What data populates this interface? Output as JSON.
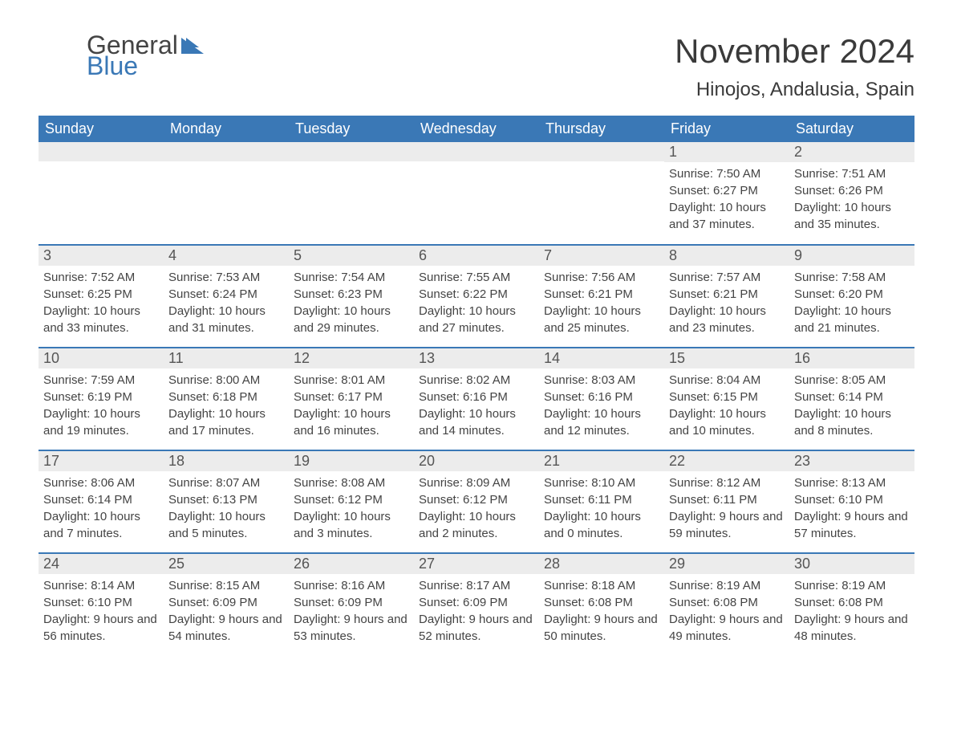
{
  "header": {
    "logo_general": "General",
    "logo_blue": "Blue",
    "month_title": "November 2024",
    "location": "Hinojos, Andalusia, Spain"
  },
  "colors": {
    "brand_blue": "#3a78b6",
    "header_text": "#ffffff",
    "daynum_bg": "#ececec",
    "body_text": "#3a3a3a",
    "background": "#ffffff"
  },
  "layout": {
    "type": "calendar-table",
    "columns": 7,
    "rows": 5,
    "start_day_index": 5
  },
  "day_headers": [
    "Sunday",
    "Monday",
    "Tuesday",
    "Wednesday",
    "Thursday",
    "Friday",
    "Saturday"
  ],
  "days": [
    {
      "n": 1,
      "sunrise": "7:50 AM",
      "sunset": "6:27 PM",
      "daylight": "10 hours and 37 minutes."
    },
    {
      "n": 2,
      "sunrise": "7:51 AM",
      "sunset": "6:26 PM",
      "daylight": "10 hours and 35 minutes."
    },
    {
      "n": 3,
      "sunrise": "7:52 AM",
      "sunset": "6:25 PM",
      "daylight": "10 hours and 33 minutes."
    },
    {
      "n": 4,
      "sunrise": "7:53 AM",
      "sunset": "6:24 PM",
      "daylight": "10 hours and 31 minutes."
    },
    {
      "n": 5,
      "sunrise": "7:54 AM",
      "sunset": "6:23 PM",
      "daylight": "10 hours and 29 minutes."
    },
    {
      "n": 6,
      "sunrise": "7:55 AM",
      "sunset": "6:22 PM",
      "daylight": "10 hours and 27 minutes."
    },
    {
      "n": 7,
      "sunrise": "7:56 AM",
      "sunset": "6:21 PM",
      "daylight": "10 hours and 25 minutes."
    },
    {
      "n": 8,
      "sunrise": "7:57 AM",
      "sunset": "6:21 PM",
      "daylight": "10 hours and 23 minutes."
    },
    {
      "n": 9,
      "sunrise": "7:58 AM",
      "sunset": "6:20 PM",
      "daylight": "10 hours and 21 minutes."
    },
    {
      "n": 10,
      "sunrise": "7:59 AM",
      "sunset": "6:19 PM",
      "daylight": "10 hours and 19 minutes."
    },
    {
      "n": 11,
      "sunrise": "8:00 AM",
      "sunset": "6:18 PM",
      "daylight": "10 hours and 17 minutes."
    },
    {
      "n": 12,
      "sunrise": "8:01 AM",
      "sunset": "6:17 PM",
      "daylight": "10 hours and 16 minutes."
    },
    {
      "n": 13,
      "sunrise": "8:02 AM",
      "sunset": "6:16 PM",
      "daylight": "10 hours and 14 minutes."
    },
    {
      "n": 14,
      "sunrise": "8:03 AM",
      "sunset": "6:16 PM",
      "daylight": "10 hours and 12 minutes."
    },
    {
      "n": 15,
      "sunrise": "8:04 AM",
      "sunset": "6:15 PM",
      "daylight": "10 hours and 10 minutes."
    },
    {
      "n": 16,
      "sunrise": "8:05 AM",
      "sunset": "6:14 PM",
      "daylight": "10 hours and 8 minutes."
    },
    {
      "n": 17,
      "sunrise": "8:06 AM",
      "sunset": "6:14 PM",
      "daylight": "10 hours and 7 minutes."
    },
    {
      "n": 18,
      "sunrise": "8:07 AM",
      "sunset": "6:13 PM",
      "daylight": "10 hours and 5 minutes."
    },
    {
      "n": 19,
      "sunrise": "8:08 AM",
      "sunset": "6:12 PM",
      "daylight": "10 hours and 3 minutes."
    },
    {
      "n": 20,
      "sunrise": "8:09 AM",
      "sunset": "6:12 PM",
      "daylight": "10 hours and 2 minutes."
    },
    {
      "n": 21,
      "sunrise": "8:10 AM",
      "sunset": "6:11 PM",
      "daylight": "10 hours and 0 minutes."
    },
    {
      "n": 22,
      "sunrise": "8:12 AM",
      "sunset": "6:11 PM",
      "daylight": "9 hours and 59 minutes."
    },
    {
      "n": 23,
      "sunrise": "8:13 AM",
      "sunset": "6:10 PM",
      "daylight": "9 hours and 57 minutes."
    },
    {
      "n": 24,
      "sunrise": "8:14 AM",
      "sunset": "6:10 PM",
      "daylight": "9 hours and 56 minutes."
    },
    {
      "n": 25,
      "sunrise": "8:15 AM",
      "sunset": "6:09 PM",
      "daylight": "9 hours and 54 minutes."
    },
    {
      "n": 26,
      "sunrise": "8:16 AM",
      "sunset": "6:09 PM",
      "daylight": "9 hours and 53 minutes."
    },
    {
      "n": 27,
      "sunrise": "8:17 AM",
      "sunset": "6:09 PM",
      "daylight": "9 hours and 52 minutes."
    },
    {
      "n": 28,
      "sunrise": "8:18 AM",
      "sunset": "6:08 PM",
      "daylight": "9 hours and 50 minutes."
    },
    {
      "n": 29,
      "sunrise": "8:19 AM",
      "sunset": "6:08 PM",
      "daylight": "9 hours and 49 minutes."
    },
    {
      "n": 30,
      "sunrise": "8:19 AM",
      "sunset": "6:08 PM",
      "daylight": "9 hours and 48 minutes."
    }
  ],
  "labels": {
    "sunrise_prefix": "Sunrise: ",
    "sunset_prefix": "Sunset: ",
    "daylight_prefix": "Daylight: "
  }
}
